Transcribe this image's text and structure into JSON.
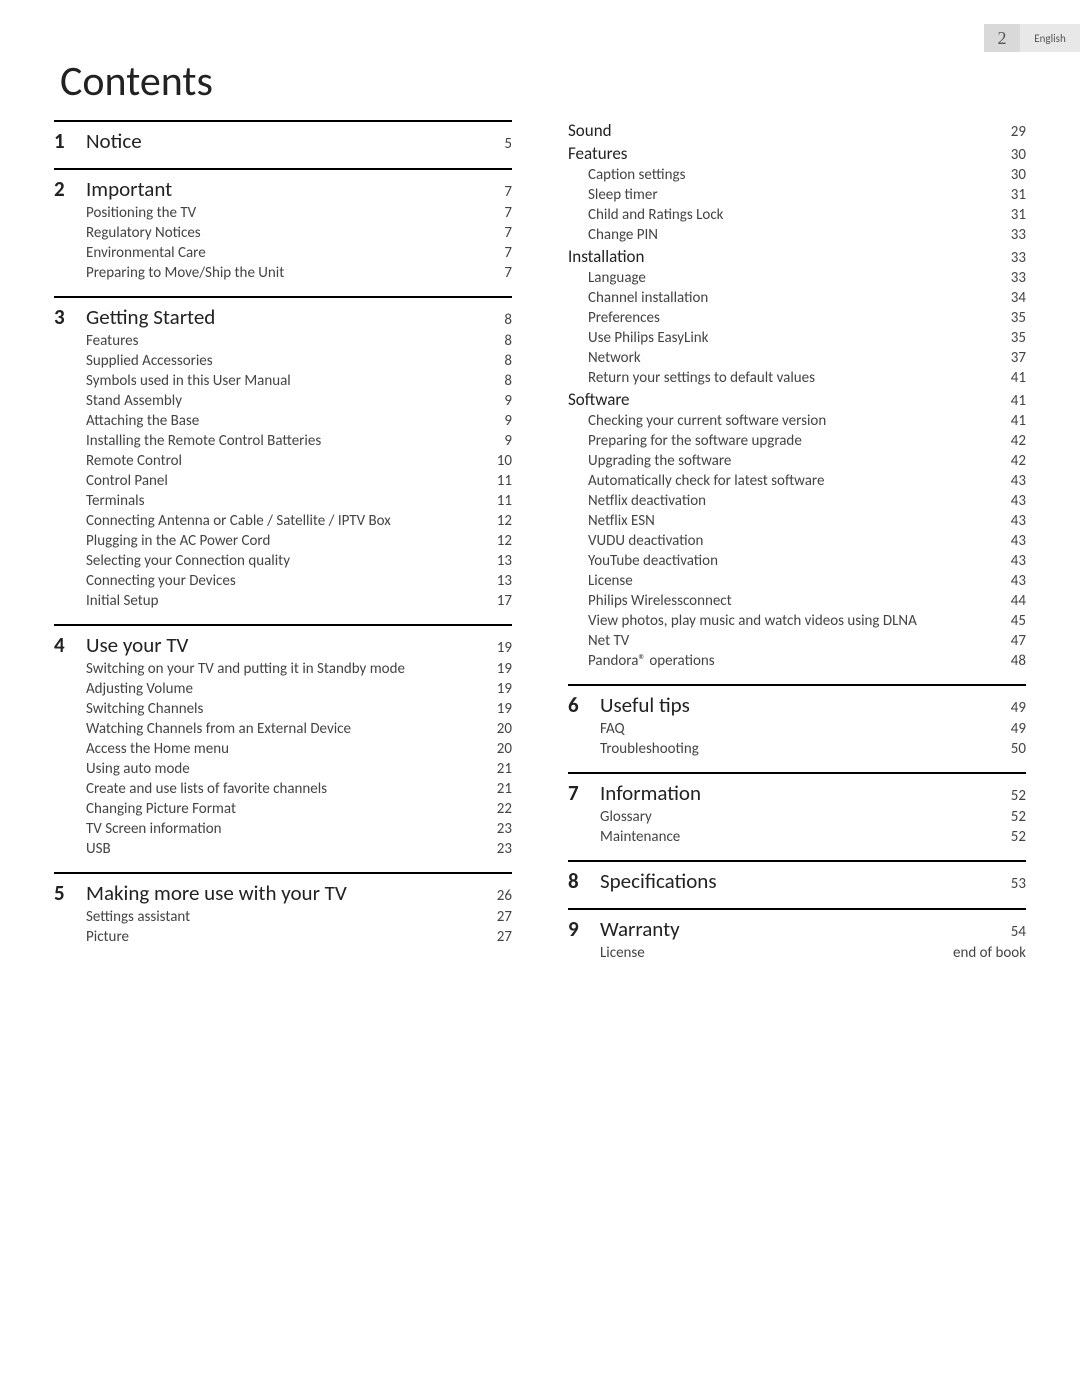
{
  "header": {
    "page_number": "2",
    "language": "English"
  },
  "title": "Contents",
  "left_column": [
    {
      "num": "1",
      "title": "Notice",
      "page": "5",
      "items": []
    },
    {
      "num": "2",
      "title": "Important",
      "page": "7",
      "items": [
        {
          "label": "Positioning the TV",
          "page": "7"
        },
        {
          "label": "Regulatory Notices",
          "page": "7"
        },
        {
          "label": "Environmental Care",
          "page": "7"
        },
        {
          "label": "Preparing to Move/Ship the Unit",
          "page": "7"
        }
      ]
    },
    {
      "num": "3",
      "title": "Getting Started",
      "page": "8",
      "items": [
        {
          "label": "Features",
          "page": "8"
        },
        {
          "label": "Supplied Accessories",
          "page": "8"
        },
        {
          "label": "Symbols used in this User Manual",
          "page": "8"
        },
        {
          "label": "Stand Assembly",
          "page": "9"
        },
        {
          "label": "Attaching the Base",
          "page": "9"
        },
        {
          "label": "Installing the Remote Control Batteries",
          "page": "9"
        },
        {
          "label": "Remote Control",
          "page": "10"
        },
        {
          "label": "Control Panel",
          "page": "11"
        },
        {
          "label": "Terminals",
          "page": "11"
        },
        {
          "label": "Connecting Antenna or Cable / Satellite / IPTV Box",
          "page": "12"
        },
        {
          "label": "Plugging in the AC Power Cord",
          "page": "12"
        },
        {
          "label": "Selecting your Connection quality",
          "page": "13"
        },
        {
          "label": "Connecting your Devices",
          "page": "13"
        },
        {
          "label": "Initial Setup",
          "page": "17"
        }
      ]
    },
    {
      "num": "4",
      "title": "Use your TV",
      "page": "19",
      "items": [
        {
          "label": "Switching on your TV and putting it in Standby mode",
          "page": "19"
        },
        {
          "label": "Adjusting Volume",
          "page": "19"
        },
        {
          "label": "Switching Channels",
          "page": "19"
        },
        {
          "label": "Watching Channels from an External Device",
          "page": "20"
        },
        {
          "label": "Access the Home menu",
          "page": "20"
        },
        {
          "label": "Using auto mode",
          "page": "21"
        },
        {
          "label": "Create and use lists of favorite channels",
          "page": "21"
        },
        {
          "label": "Changing Picture Format",
          "page": "22"
        },
        {
          "label": "TV Screen information",
          "page": "23"
        },
        {
          "label": "USB",
          "page": "23"
        }
      ]
    },
    {
      "num": "5",
      "title": "Making more use with your TV",
      "page": "26",
      "items": [
        {
          "label": "Settings assistant",
          "page": "27"
        },
        {
          "label": "Picture",
          "page": "27"
        }
      ]
    }
  ],
  "right_continuation": {
    "groups": [
      {
        "heading": null,
        "items": [
          {
            "label": "Sound",
            "page": "29",
            "level": 1
          }
        ]
      },
      {
        "heading": {
          "label": "Features",
          "page": "30"
        },
        "items": [
          {
            "label": "Caption settings",
            "page": "30",
            "level": 2
          },
          {
            "label": "Sleep timer",
            "page": "31",
            "level": 2
          },
          {
            "label": "Child and Ratings Lock",
            "page": "31",
            "level": 2
          },
          {
            "label": "Change PIN",
            "page": "33",
            "level": 2
          }
        ]
      },
      {
        "heading": {
          "label": "Installation",
          "page": "33"
        },
        "items": [
          {
            "label": "Language",
            "page": "33",
            "level": 2
          },
          {
            "label": "Channel installation",
            "page": "34",
            "level": 2
          },
          {
            "label": "Preferences",
            "page": "35",
            "level": 2
          },
          {
            "label": "Use Philips EasyLink",
            "page": "35",
            "level": 2
          },
          {
            "label": "Network",
            "page": "37",
            "level": 2
          },
          {
            "label": "Return your settings to default values",
            "page": "41",
            "level": 2
          }
        ]
      },
      {
        "heading": {
          "label": "Software",
          "page": "41"
        },
        "items": [
          {
            "label": "Checking your current software version",
            "page": "41",
            "level": 2
          },
          {
            "label": "Preparing for the software upgrade",
            "page": "42",
            "level": 2
          },
          {
            "label": "Upgrading the software",
            "page": "42",
            "level": 2
          },
          {
            "label": "Automatically check for latest software",
            "page": "43",
            "level": 2
          },
          {
            "label": "Netflix deactivation",
            "page": "43",
            "level": 2
          },
          {
            "label": "Netflix ESN",
            "page": "43",
            "level": 2
          },
          {
            "label": "VUDU deactivation",
            "page": "43",
            "level": 2
          },
          {
            "label": "YouTube deactivation",
            "page": "43",
            "level": 2
          },
          {
            "label": "License",
            "page": "43",
            "level": 2
          },
          {
            "label": "Philips Wirelessconnect",
            "page": "44",
            "level": 2
          },
          {
            "label": "View photos, play music and watch videos using DLNA",
            "page": "45",
            "level": 2
          },
          {
            "label": "Net TV",
            "page": "47",
            "level": 2
          },
          {
            "label": "Pandora® operations",
            "page": "48",
            "level": 2
          }
        ]
      }
    ]
  },
  "right_sections": [
    {
      "num": "6",
      "title": "Useful tips",
      "page": "49",
      "items": [
        {
          "label": "FAQ",
          "page": "49"
        },
        {
          "label": "Troubleshooting",
          "page": "50"
        }
      ]
    },
    {
      "num": "7",
      "title": "Information",
      "page": "52",
      "items": [
        {
          "label": "Glossary",
          "page": "52"
        },
        {
          "label": "Maintenance",
          "page": "52"
        }
      ]
    },
    {
      "num": "8",
      "title": "Specifications",
      "page": "53",
      "items": []
    },
    {
      "num": "9",
      "title": "Warranty",
      "page": "54",
      "items": [
        {
          "label": "License",
          "page": "end of book"
        }
      ]
    }
  ]
}
